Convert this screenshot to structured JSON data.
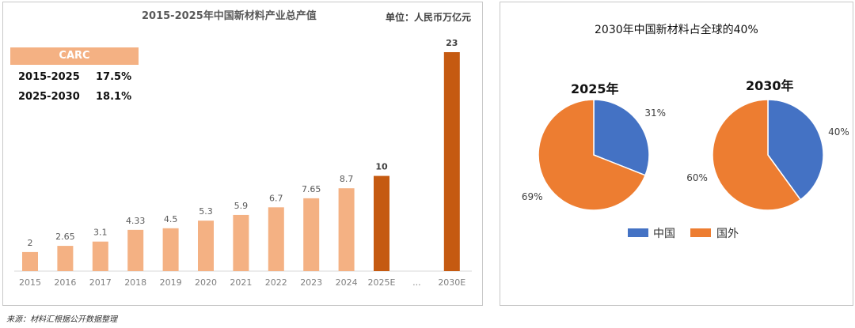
{
  "source_note": "来源：材料汇根据公开数据整理",
  "left": {
    "title": "2015-2025年中国新材料产业总产值",
    "unit": "单位：人民币万亿元",
    "carc": {
      "header": "CARC",
      "rows": [
        {
          "period": "2015-2025",
          "rate": "17.5%"
        },
        {
          "period": "2025-2030",
          "rate": "18.1%"
        }
      ]
    }
  },
  "right": {
    "title": "2030年中国新材料占全球的40%",
    "legend": [
      {
        "label": "中国",
        "color": "#4472c4"
      },
      {
        "label": "国外",
        "color": "#ed7d31"
      }
    ]
  },
  "chart_data": [
    {
      "type": "bar",
      "title": "2015-2025年中国新材料产业总产值",
      "unit": "单位：人民币万亿元",
      "categories": [
        "2015",
        "2016",
        "2017",
        "2018",
        "2019",
        "2020",
        "2021",
        "2022",
        "2023",
        "2024",
        "2025E",
        "...",
        "2030E"
      ],
      "values": [
        2,
        2.65,
        3.1,
        4.33,
        4.5,
        5.3,
        5.9,
        6.7,
        7.65,
        8.7,
        10,
        null,
        23
      ],
      "value_labels": [
        "2",
        "2.65",
        "3.1",
        "4.33",
        "4.5",
        "5.3",
        "5.9",
        "6.7",
        "7.65",
        "8.7",
        "10",
        "",
        "23"
      ],
      "highlight_categories": [
        "2025E",
        "2030E"
      ],
      "colors": {
        "actual": "#f4b183",
        "forecast": "#c55a11"
      },
      "ylim": [
        0,
        23
      ],
      "grid": false
    },
    {
      "type": "pie",
      "title": "2025年",
      "slices": [
        {
          "name": "中国",
          "value": 31,
          "label": "31%",
          "color": "#4472c4"
        },
        {
          "name": "国外",
          "value": 69,
          "label": "69%",
          "color": "#ed7d31"
        }
      ]
    },
    {
      "type": "pie",
      "title": "2030年",
      "slices": [
        {
          "name": "中国",
          "value": 40,
          "label": "40%",
          "color": "#4472c4"
        },
        {
          "name": "国外",
          "value": 60,
          "label": "60%",
          "color": "#ed7d31"
        }
      ]
    }
  ]
}
